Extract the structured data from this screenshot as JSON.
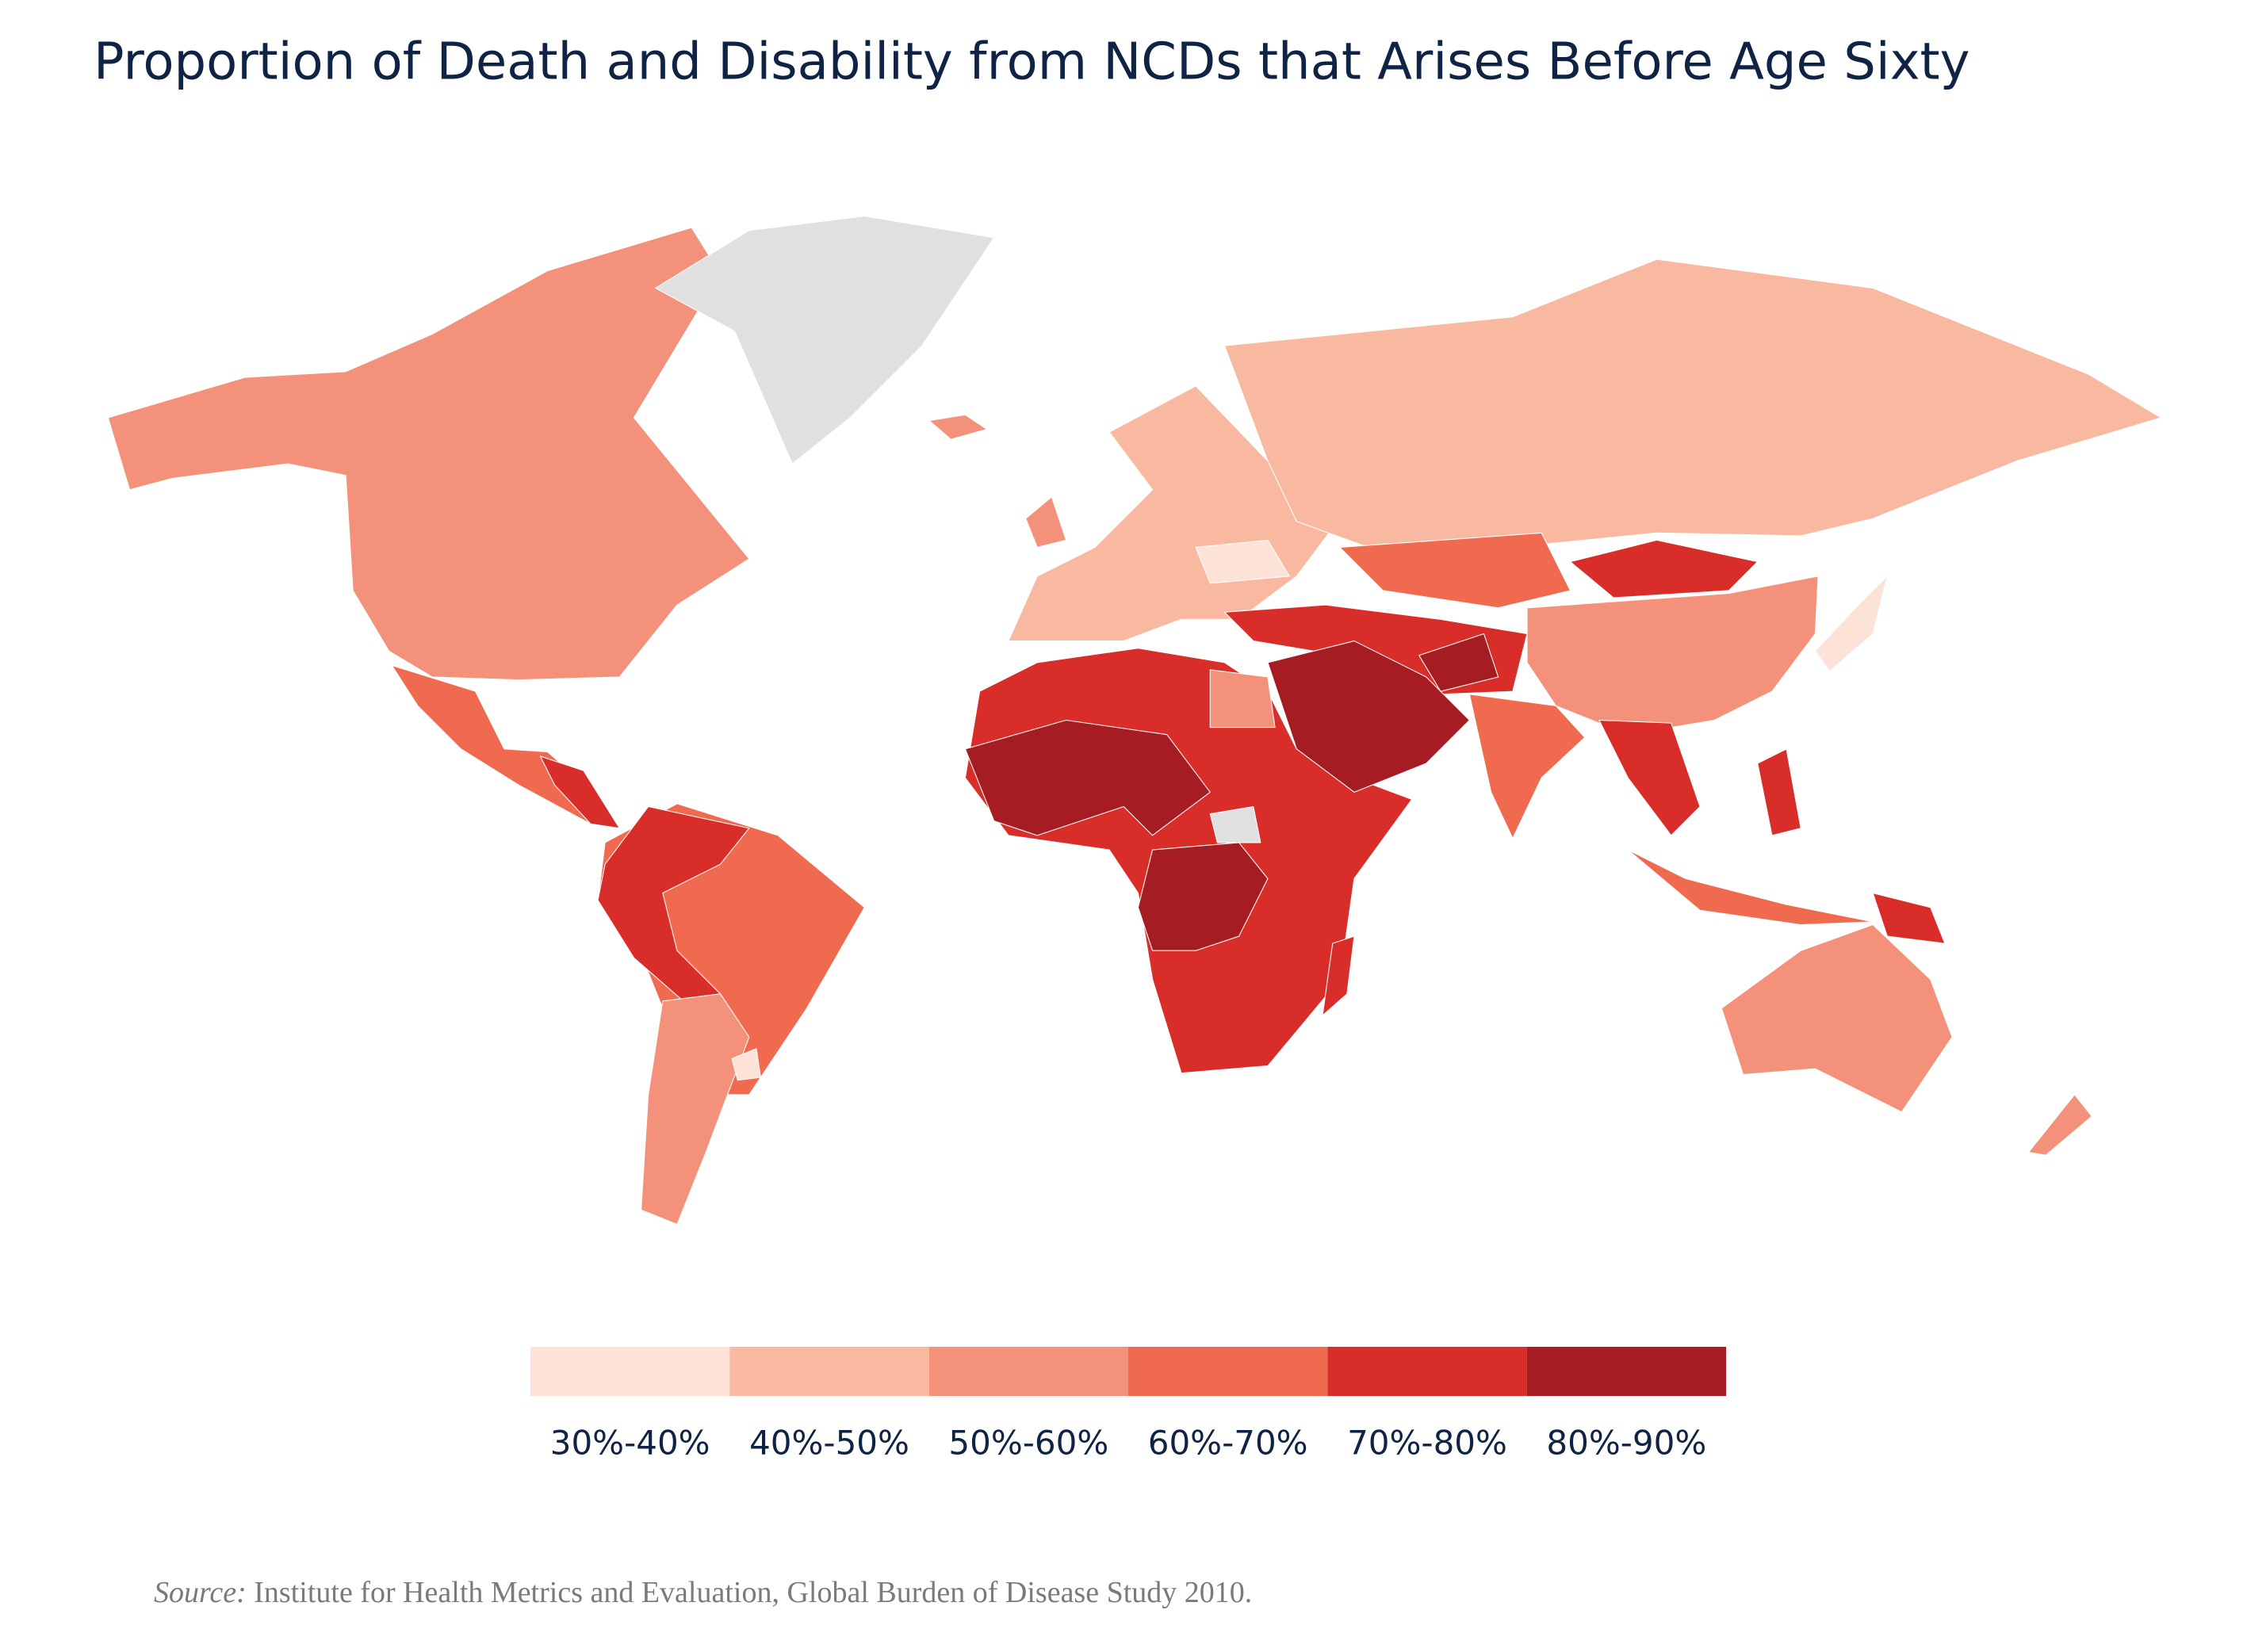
{
  "title": "Proportion of Death and Disability from NCDs that Arises Before Age Sixty",
  "legend": {
    "items": [
      {
        "label": "30%-40%",
        "color": "#fde3d7"
      },
      {
        "label": "40%-50%",
        "color": "#f9b9a0"
      },
      {
        "label": "50%-60%",
        "color": "#f4917a"
      },
      {
        "label": "60%-70%",
        "color": "#ef6a4f"
      },
      {
        "label": "70%-80%",
        "color": "#d92d2a"
      },
      {
        "label": "80%-90%",
        "color": "#a51c22"
      }
    ]
  },
  "source": {
    "label": "Source:",
    "text": "Institute for Health Metrics and Evaluation, Global Burden of Disease Study 2010."
  }
}
